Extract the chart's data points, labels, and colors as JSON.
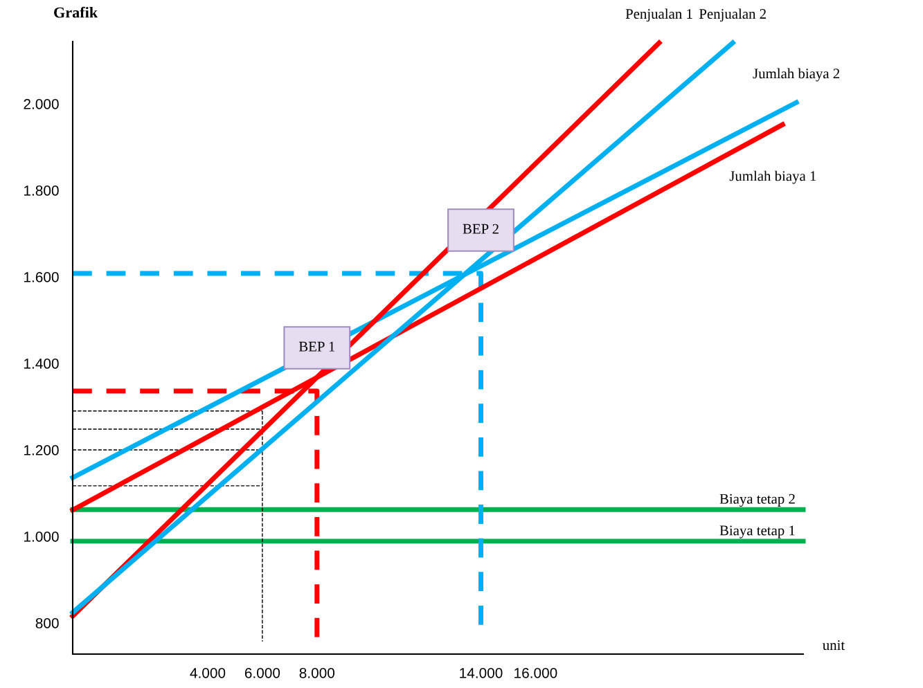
{
  "chart_data": {
    "type": "line",
    "title": "Grafik",
    "xlabel": "unit",
    "xlim": [
      -943,
      25800
    ],
    "ylim": [
      728,
      2144
    ],
    "xticks": [
      {
        "value": 4000,
        "label": "4.000"
      },
      {
        "value": 6000,
        "label": "6.000"
      },
      {
        "value": 8000,
        "label": "8.000"
      },
      {
        "value": 14000,
        "label": "14.000"
      },
      {
        "value": 16000,
        "label": "16.000"
      }
    ],
    "yticks": [
      {
        "value": 800,
        "label": "800"
      },
      {
        "value": 1000,
        "label": "1.000"
      },
      {
        "value": 1200,
        "label": "1.200"
      },
      {
        "value": 1400,
        "label": "1.400"
      },
      {
        "value": 1600,
        "label": "1.600"
      },
      {
        "value": 1800,
        "label": "1.800"
      },
      {
        "value": 2000,
        "label": "2.000"
      }
    ],
    "grid": false,
    "legend": false,
    "series": [
      {
        "name": "Biaya tetap 2",
        "color": "#00b050",
        "x": [
          -943,
          25800
        ],
        "values": [
          1062,
          1062
        ]
      },
      {
        "name": "Biaya tetap 1",
        "color": "#00b050",
        "x": [
          -943,
          25800
        ],
        "values": [
          989,
          989
        ]
      },
      {
        "color": "#000000",
        "line_style": "dashed",
        "x": [
          -943,
          6000
        ],
        "values": [
          1290,
          1290
        ]
      },
      {
        "color": "#000000",
        "line_style": "dashed",
        "x": [
          -943,
          6000
        ],
        "values": [
          1248,
          1248
        ]
      },
      {
        "color": "#000000",
        "line_style": "dashed",
        "x": [
          -943,
          6000
        ],
        "values": [
          1200,
          1200
        ]
      },
      {
        "color": "#000000",
        "line_style": "dashed",
        "x": [
          -943,
          6000
        ],
        "values": [
          1117,
          1117
        ]
      },
      {
        "color": "#000000",
        "line_style": "dashed",
        "x": [
          6000,
          6000
        ],
        "values": [
          1290,
          757
        ]
      },
      {
        "color": "#ff0000",
        "line_style": "dashed",
        "x": [
          -943,
          8000,
          8000
        ],
        "values": [
          1336,
          1336,
          760
        ]
      },
      {
        "color": "#00b0f0",
        "line_style": "dashed",
        "x": [
          -943,
          14000,
          14000
        ],
        "values": [
          1608,
          1608,
          787
        ]
      },
      {
        "name": "Jumlah biaya 1",
        "color": "#ff0000",
        "x": [
          -943,
          25045
        ],
        "values": [
          1061,
          1952
        ]
      },
      {
        "name": "Jumlah biaya 2",
        "color": "#00b0f0",
        "x": [
          -943,
          25550
        ],
        "values": [
          1136,
          2003
        ]
      },
      {
        "name": "Penjualan 1",
        "color": "#ff0000",
        "x": [
          -943,
          20527
        ],
        "values": [
          816,
          2141
        ]
      },
      {
        "name": "Penjualan 2",
        "color": "#00b0f0",
        "x": [
          -943,
          23220
        ],
        "values": [
          824,
          2141
        ]
      }
    ],
    "annotations": [
      "BEP 1",
      "BEP 2"
    ]
  }
}
